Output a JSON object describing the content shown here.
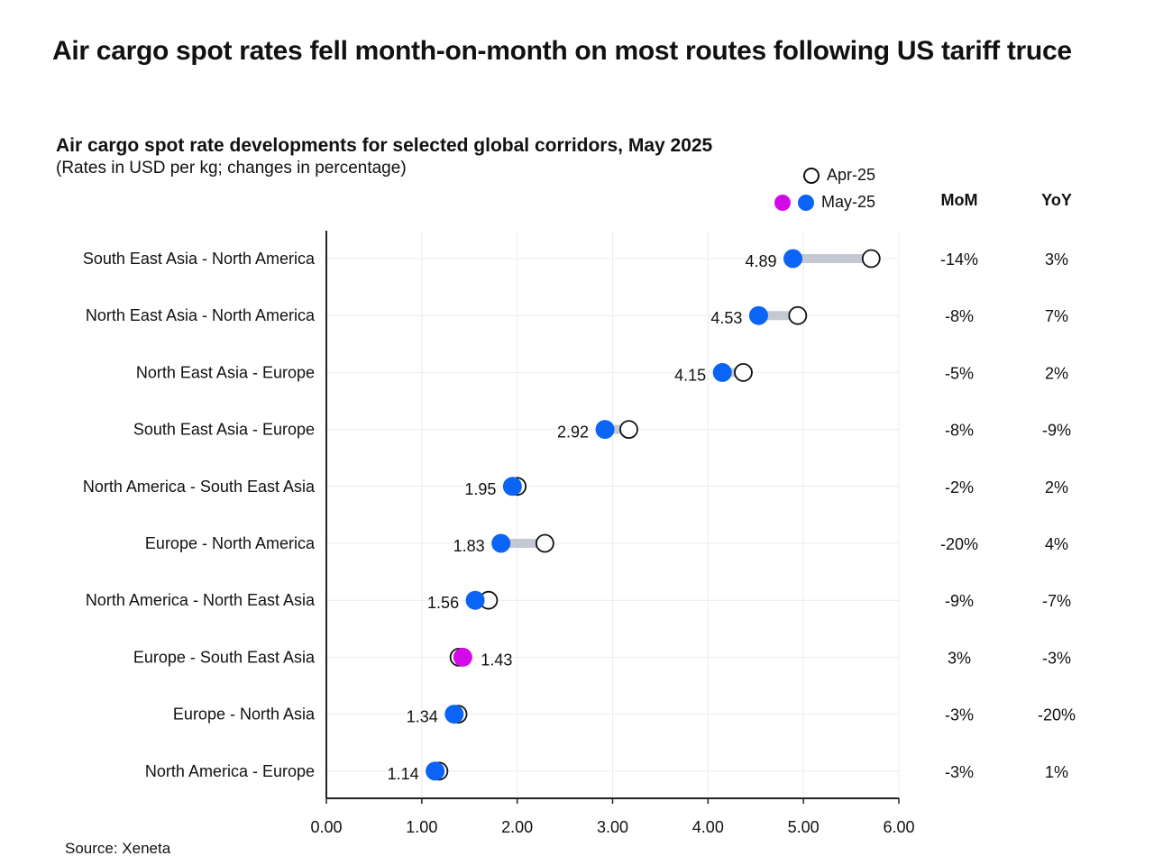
{
  "headline": "Air cargo spot rates fell month-on-month on most routes following US tariff truce",
  "subtitle": "Air cargo spot rate developments for selected global corridors, May 2025",
  "subnote": "(Rates in USD per kg; changes in percentage)",
  "legend": {
    "apr": "Apr-25",
    "may": "May-25"
  },
  "columns": {
    "mom": "MoM",
    "yoy": "YoY"
  },
  "source": "Source: Xeneta",
  "colors": {
    "may": "#0a64f5",
    "may_up": "#d20ae6",
    "connector": "#c3c8d2",
    "axis": "#222222",
    "grid": "#ececec"
  },
  "chart_data": {
    "type": "dumbbell",
    "title": "Air cargo spot rate developments for selected global corridors, May 2025",
    "xlabel": "",
    "ylabel": "",
    "xlim": [
      0,
      6
    ],
    "xticks": [
      "0.00",
      "1.00",
      "2.00",
      "3.00",
      "4.00",
      "5.00",
      "6.00"
    ],
    "categories": [
      "South East Asia - North America",
      "North East Asia - North America",
      "North East Asia - Europe",
      "South East Asia - Europe",
      "North America - South East Asia",
      "Europe - North America",
      "North America - North East Asia",
      "Europe - South East Asia",
      "Europe - North Asia",
      "North America - Europe"
    ],
    "series": [
      {
        "name": "Apr-25",
        "values": [
          5.71,
          4.94,
          4.37,
          3.17,
          2.0,
          2.29,
          1.7,
          1.39,
          1.38,
          1.18
        ]
      },
      {
        "name": "May-25",
        "values": [
          4.89,
          4.53,
          4.15,
          2.92,
          1.95,
          1.83,
          1.56,
          1.43,
          1.34,
          1.14
        ]
      }
    ],
    "may_labels": [
      "4.89",
      "4.53",
      "4.15",
      "2.92",
      "1.95",
      "1.83",
      "1.56",
      "1.43",
      "1.34",
      "1.14"
    ],
    "mom": [
      "-14%",
      "-8%",
      "-5%",
      "-8%",
      "-2%",
      "-20%",
      "-9%",
      "3%",
      "-3%",
      "-3%"
    ],
    "yoy": [
      "3%",
      "7%",
      "2%",
      "-9%",
      "2%",
      "4%",
      "-7%",
      "-3%",
      "-20%",
      "1%"
    ]
  }
}
